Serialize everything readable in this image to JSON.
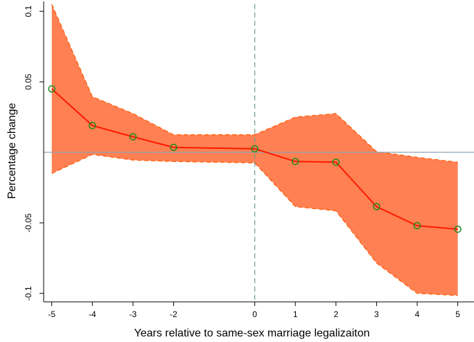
{
  "chart_data": {
    "type": "line",
    "title": "",
    "xlabel": "Years relative to same-sex marriage legalizaiton",
    "ylabel": "Percentage change",
    "x": [
      -5,
      -4,
      -3,
      -2,
      0,
      1,
      2,
      3,
      4,
      5
    ],
    "xticks": [
      "-5",
      "-4",
      "-3",
      "-2",
      "0",
      "1",
      "2",
      "3",
      "4",
      "5"
    ],
    "yticks": [
      "-0.1",
      "-0.05",
      "0.05",
      "0.1"
    ],
    "ytick_values": [
      -0.1,
      -0.05,
      0.05,
      0.1
    ],
    "xlim": [
      -5.2,
      5.4
    ],
    "ylim": [
      -0.106,
      0.108
    ],
    "grid": false,
    "series": [
      {
        "values": [
          0.045,
          0.019,
          0.011,
          0.0035,
          0.0025,
          -0.0065,
          -0.007,
          -0.0385,
          -0.052,
          -0.0545
        ],
        "lower": [
          -0.015,
          -0.0015,
          -0.0055,
          -0.0065,
          -0.0075,
          -0.0385,
          -0.0415,
          -0.0785,
          -0.1,
          -0.1015
        ],
        "upper": [
          0.105,
          0.0395,
          0.0275,
          0.0125,
          0.0125,
          0.025,
          0.0275,
          0.0005,
          -0.0035,
          -0.007
        ]
      }
    ],
    "reference_lines": {
      "horizontal_y": 0,
      "vertical_x": 0
    },
    "colors": {
      "band_fill": "#ff8052",
      "band_edge": "#ff5a00",
      "line": "#ff1a00",
      "marker": "#1a8a1a",
      "hline": "#8aa4b8",
      "vline": "#6e9c88",
      "axis": "#000000"
    }
  }
}
